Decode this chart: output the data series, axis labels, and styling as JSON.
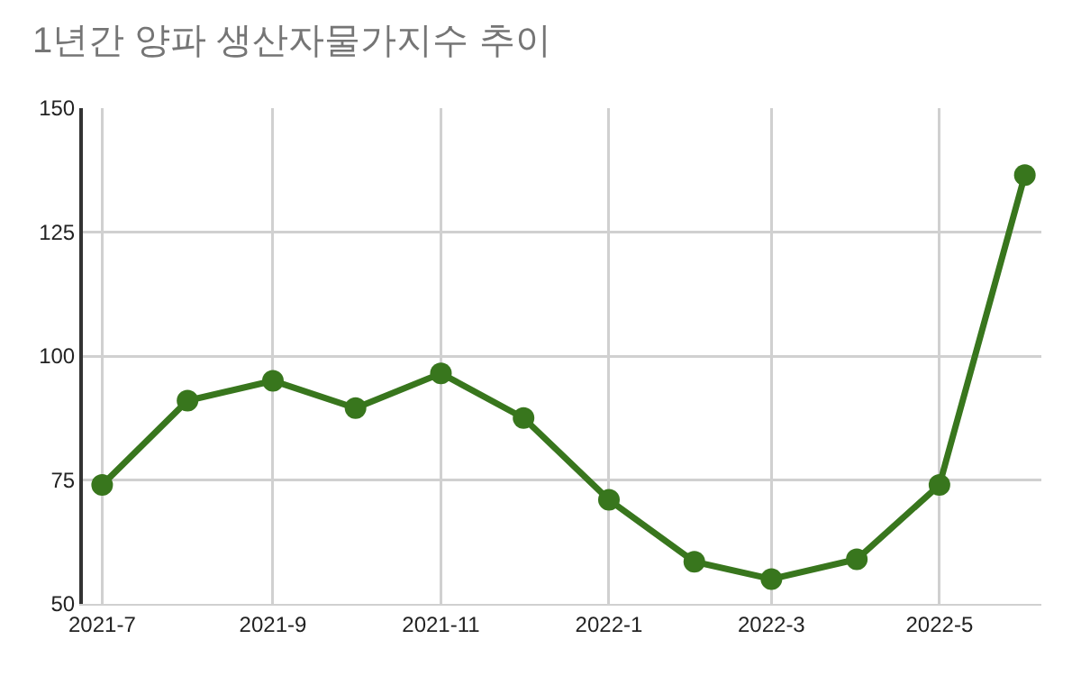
{
  "chart_data": {
    "type": "line",
    "title": "1년간 양파 생산자물가지수 추이",
    "x": [
      "2021-07",
      "2021-08",
      "2021-09",
      "2021-10",
      "2021-11",
      "2021-12",
      "2022-01",
      "2022-02",
      "2022-03",
      "2022-04",
      "2022-05",
      "2022-06"
    ],
    "series": [
      {
        "color": "#38761d",
        "values": [
          74,
          91,
          95,
          89.5,
          96.5,
          87.5,
          71,
          58.5,
          55,
          59,
          74,
          136.5
        ]
      }
    ],
    "xlim": [
      "2021-06-24",
      "2022-06-07"
    ],
    "xticks": [
      {
        "value": "2021-07",
        "label": "2021-7"
      },
      {
        "value": "2021-09",
        "label": "2021-9"
      },
      {
        "value": "2021-11",
        "label": "2021-11"
      },
      {
        "value": "2022-01",
        "label": "2022-1"
      },
      {
        "value": "2022-03",
        "label": "2022-3"
      },
      {
        "value": "2022-05",
        "label": "2022-5"
      }
    ],
    "ylim": [
      50,
      150
    ],
    "yticks": [
      50,
      75,
      100,
      125,
      150
    ],
    "grid": true,
    "marker": "circle",
    "line_style": "solid"
  }
}
